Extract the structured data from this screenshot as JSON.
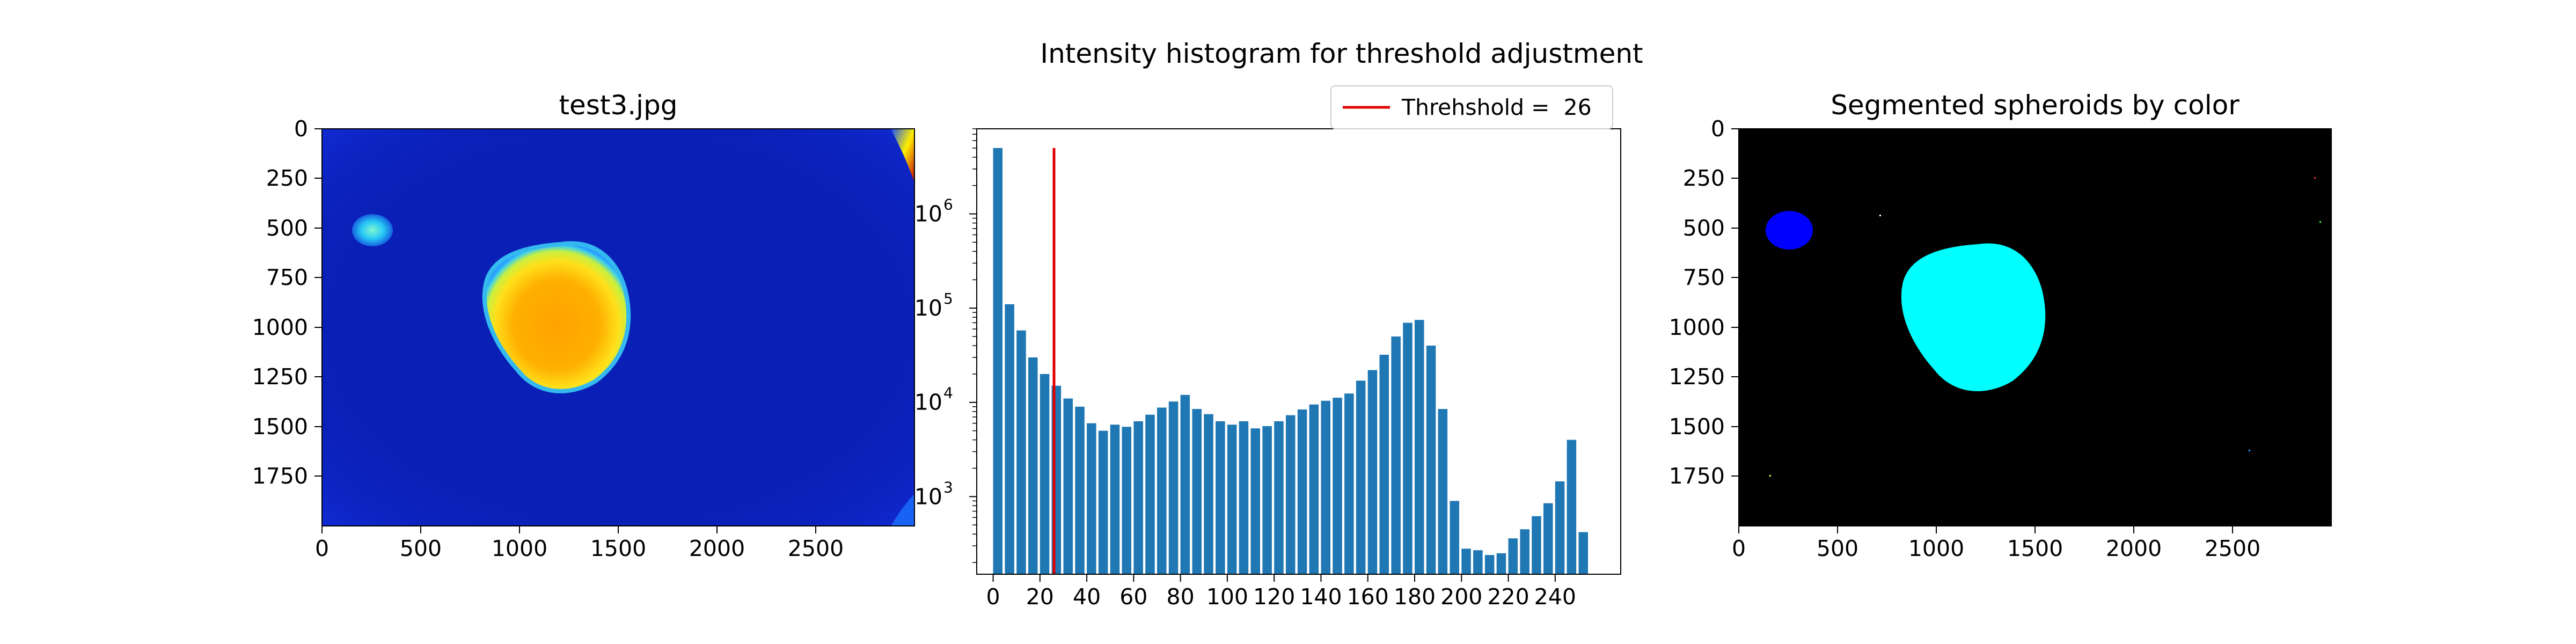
{
  "chart_data": [
    {
      "type": "image",
      "title": "test3.jpg",
      "colormap": "jet",
      "xticks": [
        "0",
        "500",
        "1000",
        "1500",
        "2000",
        "2500"
      ],
      "xtick_values": [
        0,
        500,
        1000,
        1500,
        2000,
        2500
      ],
      "yticks": [
        "0",
        "250",
        "500",
        "750",
        "1000",
        "1250",
        "1500",
        "1750"
      ],
      "ytick_values": [
        0,
        250,
        500,
        750,
        1000,
        1250,
        1500,
        1750
      ],
      "xlim": [
        0,
        3000
      ],
      "ylim": [
        2000,
        0
      ],
      "colors": {
        "background": "#0a1fb5",
        "blob_edge": "#36c8f0",
        "blob_core": "#ffa500",
        "spot": "#2fb6f2"
      }
    },
    {
      "type": "bar",
      "title": "Intensity histogram for threshold adjustment",
      "yscale": "log",
      "bar_color": "#1f77b4",
      "xticks": [
        "0",
        "20",
        "40",
        "60",
        "80",
        "100",
        "120",
        "140",
        "160",
        "180",
        "200",
        "220",
        "240"
      ],
      "xtick_values": [
        0,
        20,
        40,
        60,
        80,
        100,
        120,
        140,
        160,
        180,
        200,
        220,
        240
      ],
      "yticks": [
        "10",
        "10",
        "10",
        "10"
      ],
      "ytick_exponents": [
        "3",
        "4",
        "5",
        "6"
      ],
      "ytick_values": [
        1000,
        10000,
        100000,
        1000000
      ],
      "xlim": [
        -7,
        268
      ],
      "ylim": [
        150,
        8000000
      ],
      "x": [
        2,
        7,
        12,
        17,
        22,
        27,
        32,
        37,
        42,
        47,
        52,
        57,
        62,
        67,
        72,
        77,
        82,
        87,
        92,
        97,
        102,
        107,
        112,
        117,
        122,
        127,
        132,
        137,
        142,
        147,
        152,
        157,
        162,
        167,
        172,
        177,
        182,
        187,
        192,
        197,
        202,
        207,
        212,
        217,
        222,
        227,
        232,
        237,
        242,
        247,
        252
      ],
      "values": [
        5000000,
        110000,
        58000,
        30000,
        20000,
        15000,
        11000,
        9000,
        6000,
        5000,
        5800,
        5500,
        6300,
        7400,
        8800,
        10200,
        12000,
        8500,
        7500,
        6300,
        5800,
        6300,
        5300,
        5600,
        6300,
        7300,
        8400,
        9500,
        10400,
        11200,
        12400,
        17000,
        22000,
        32000,
        50000,
        70000,
        75000,
        40000,
        8500,
        900,
        280,
        270,
        240,
        250,
        360,
        450,
        620,
        850,
        1450,
        4000,
        420
      ],
      "threshold": 26,
      "threshold_color": "#e00000",
      "legend": {
        "label": "Threhshold =  26",
        "placement": "upper right"
      }
    },
    {
      "type": "image",
      "title": "Segmented spheroids by color",
      "xticks": [
        "0",
        "500",
        "1000",
        "1500",
        "2000",
        "2500"
      ],
      "xtick_values": [
        0,
        500,
        1000,
        1500,
        2000,
        2500
      ],
      "yticks": [
        "0",
        "250",
        "500",
        "750",
        "1000",
        "1250",
        "1500",
        "1750"
      ],
      "ytick_values": [
        0,
        250,
        500,
        750,
        1000,
        1250,
        1500,
        1750
      ],
      "xlim": [
        0,
        3000
      ],
      "ylim": [
        2000,
        0
      ],
      "colors": {
        "background": "#000000",
        "large_spheroid": "#00ffff",
        "small_spheroid": "#0000ff"
      }
    }
  ]
}
